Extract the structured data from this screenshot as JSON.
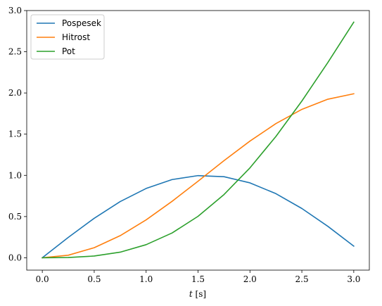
{
  "chart_data": {
    "type": "line",
    "xlabel_var": "t",
    "xlabel_unit": " [s]",
    "ylabel": "",
    "xlim": [
      -0.15,
      3.15
    ],
    "ylim": [
      -0.15,
      3.0
    ],
    "xticks": [
      0.0,
      0.5,
      1.0,
      1.5,
      2.0,
      2.5,
      3.0
    ],
    "xtick_labels": [
      "0.0",
      "0.5",
      "1.0",
      "1.5",
      "2.0",
      "2.5",
      "3.0"
    ],
    "yticks": [
      0.0,
      0.5,
      1.0,
      1.5,
      2.0,
      2.5,
      3.0
    ],
    "ytick_labels": [
      "0.0",
      "0.5",
      "1.0",
      "1.5",
      "2.0",
      "2.5",
      "3.0"
    ],
    "grid": false,
    "legend_position": "top-left",
    "x": [
      0.0,
      0.25,
      0.5,
      0.75,
      1.0,
      1.25,
      1.5,
      1.75,
      2.0,
      2.25,
      2.5,
      2.75,
      3.0
    ],
    "series": [
      {
        "name": "Pospesek",
        "color": "#1f77b4",
        "values": [
          0.0,
          0.247,
          0.479,
          0.682,
          0.841,
          0.949,
          0.997,
          0.984,
          0.909,
          0.778,
          0.598,
          0.382,
          0.141
        ]
      },
      {
        "name": "Hitrost",
        "color": "#ff7f0e",
        "values": [
          0.0,
          0.031,
          0.122,
          0.268,
          0.46,
          0.685,
          0.929,
          1.178,
          1.416,
          1.628,
          1.801,
          1.924,
          1.99
        ]
      },
      {
        "name": "Pot",
        "color": "#2ca02c",
        "values": [
          0.0,
          0.003,
          0.021,
          0.068,
          0.159,
          0.301,
          0.503,
          0.767,
          1.091,
          1.472,
          1.902,
          2.369,
          2.859
        ]
      }
    ]
  }
}
